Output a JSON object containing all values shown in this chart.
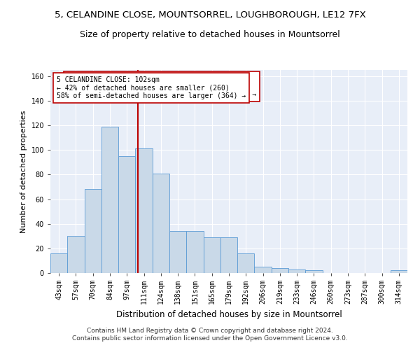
{
  "title": "5, CELANDINE CLOSE, MOUNTSORREL, LOUGHBOROUGH, LE12 7FX",
  "subtitle": "Size of property relative to detached houses in Mountsorrel",
  "xlabel": "Distribution of detached houses by size in Mountsorrel",
  "ylabel": "Number of detached properties",
  "categories": [
    "43sqm",
    "57sqm",
    "70sqm",
    "84sqm",
    "97sqm",
    "111sqm",
    "124sqm",
    "138sqm",
    "151sqm",
    "165sqm",
    "179sqm",
    "192sqm",
    "206sqm",
    "219sqm",
    "233sqm",
    "246sqm",
    "260sqm",
    "273sqm",
    "287sqm",
    "300sqm",
    "314sqm"
  ],
  "values": [
    16,
    30,
    68,
    119,
    95,
    101,
    81,
    34,
    34,
    29,
    29,
    16,
    5,
    4,
    3,
    2,
    0,
    0,
    0,
    0,
    2
  ],
  "bar_color": "#c9d9e8",
  "bar_edge_color": "#5b9bd5",
  "bar_width": 1.0,
  "vline_x": 4.65,
  "vline_color": "#bb0000",
  "annotation_text": "5 CELANDINE CLOSE: 102sqm\n← 42% of detached houses are smaller (260)\n58% of semi-detached houses are larger (364) →",
  "annotation_box_color": "#ffffff",
  "annotation_box_edge": "#bb0000",
  "ylim": [
    0,
    165
  ],
  "yticks": [
    0,
    20,
    40,
    60,
    80,
    100,
    120,
    140,
    160
  ],
  "background_color": "#e8eef8",
  "footer_text": "Contains HM Land Registry data © Crown copyright and database right 2024.\nContains public sector information licensed under the Open Government Licence v3.0.",
  "title_fontsize": 9.5,
  "subtitle_fontsize": 9,
  "xlabel_fontsize": 8.5,
  "ylabel_fontsize": 8,
  "tick_fontsize": 7,
  "footer_fontsize": 6.5,
  "annotation_fontsize": 7
}
